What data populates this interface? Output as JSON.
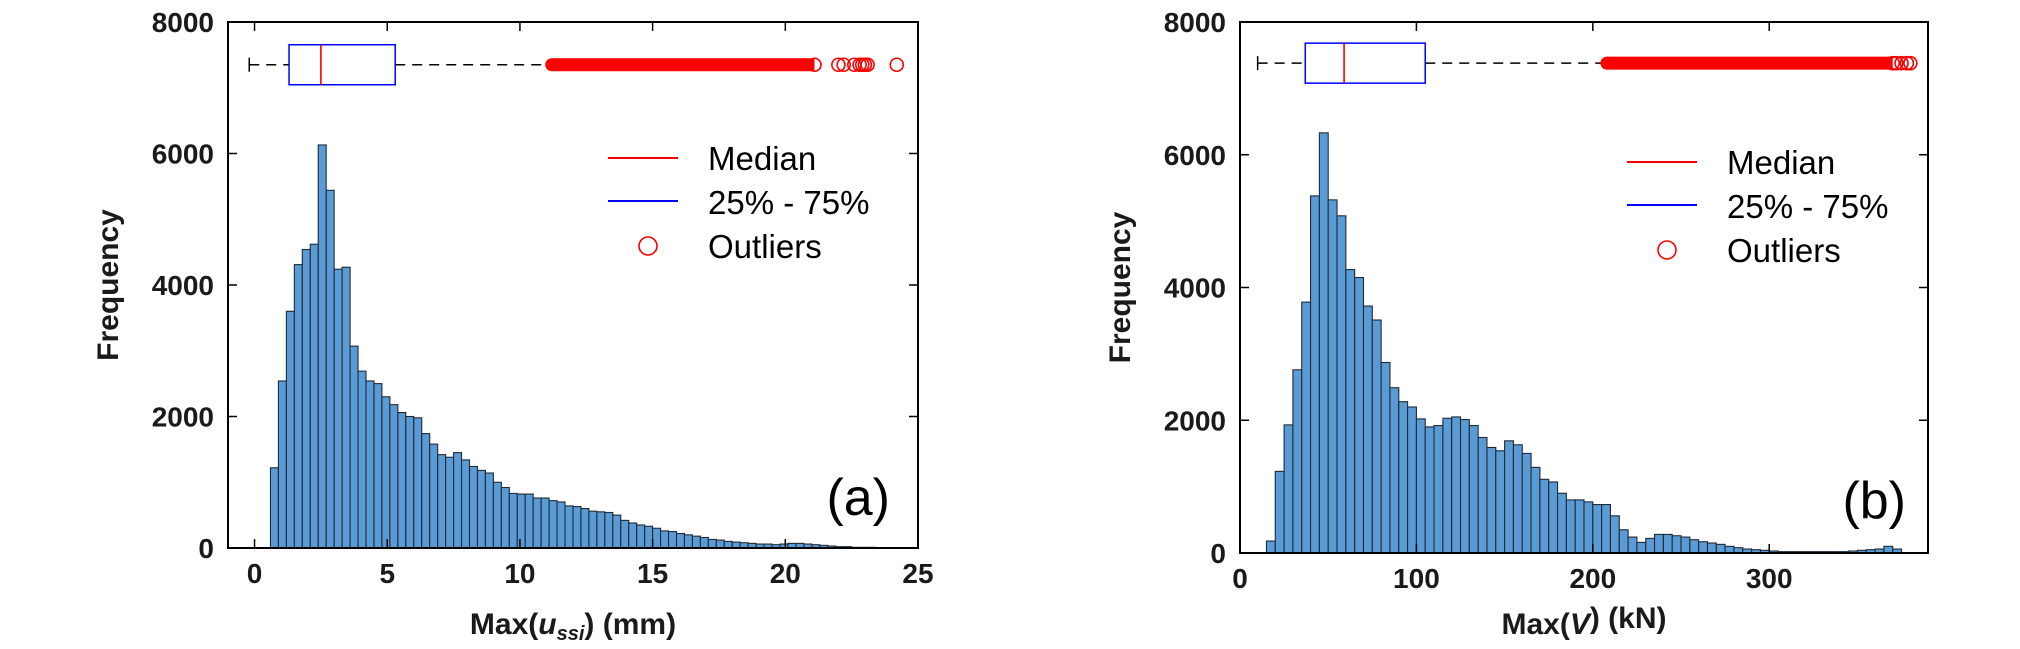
{
  "chart_data": [
    {
      "type": "bar",
      "panel_label": "(a)",
      "ylabel": "Frequency",
      "xlabel": {
        "prefix": "Max(",
        "var": "u",
        "sub": "ssi",
        "suffix": ")  (mm)"
      },
      "xlim": [
        -1,
        25
      ],
      "ylim": [
        0,
        8000
      ],
      "xticks": [
        0,
        5,
        10,
        15,
        20,
        25
      ],
      "yticks": [
        0,
        2000,
        4000,
        6000,
        8000
      ],
      "bins": {
        "start": 0.6,
        "width": 0.3
      },
      "values": [
        1220,
        2540,
        3600,
        4310,
        4540,
        4620,
        6130,
        5440,
        4240,
        4270,
        3070,
        2690,
        2540,
        2500,
        2300,
        2180,
        2060,
        2000,
        1980,
        1740,
        1580,
        1420,
        1380,
        1450,
        1340,
        1240,
        1180,
        1140,
        1000,
        920,
        830,
        820,
        820,
        760,
        760,
        720,
        700,
        640,
        630,
        600,
        560,
        550,
        540,
        500,
        420,
        380,
        350,
        330,
        300,
        260,
        250,
        220,
        200,
        180,
        160,
        130,
        120,
        100,
        90,
        80,
        70,
        60,
        60,
        50,
        60,
        70,
        70,
        60,
        50,
        40,
        30,
        20,
        20,
        10,
        10,
        10
      ],
      "boxplot": {
        "y": 7350,
        "whisker_low": -0.2,
        "q1": 1.3,
        "median": 2.5,
        "q3": 5.3,
        "whisker_high": 11.2,
        "outlier_min": 11.2,
        "outlier_dense_end": 21.1,
        "outliers_sparse": [
          22.0,
          22.2,
          22.6,
          22.8,
          22.9,
          23.0,
          23.1,
          24.2
        ]
      },
      "legend": [
        "Median",
        "25% - 75%",
        "Outliers"
      ],
      "colors": {
        "bar_fill": "#5b9bd5",
        "bar_edge": "#1f2a36",
        "median": "#ff0000",
        "box": "#0000ff",
        "outlier": "#ff0000"
      }
    },
    {
      "type": "bar",
      "panel_label": "(b)",
      "ylabel": "Frequency",
      "xlabel": {
        "prefix": "Max(",
        "var": "V",
        "sub": "",
        "suffix": ")   (kN)"
      },
      "xlim": [
        0,
        390
      ],
      "ylim": [
        0,
        8000
      ],
      "xticks": [
        0,
        100,
        200,
        300
      ],
      "yticks": [
        0,
        2000,
        4000,
        6000,
        8000
      ],
      "bins": {
        "start": 15,
        "width": 5
      },
      "values": [
        180,
        1230,
        1930,
        2760,
        3780,
        5380,
        6330,
        5320,
        5080,
        4270,
        4150,
        3720,
        3510,
        2870,
        2490,
        2280,
        2200,
        2020,
        1900,
        1920,
        2030,
        2050,
        2010,
        1920,
        1740,
        1590,
        1540,
        1690,
        1630,
        1500,
        1290,
        1110,
        1070,
        900,
        800,
        800,
        770,
        730,
        730,
        560,
        350,
        240,
        160,
        220,
        280,
        280,
        260,
        240,
        200,
        170,
        150,
        130,
        100,
        80,
        60,
        50,
        40,
        30,
        20,
        20,
        20,
        20,
        20,
        20,
        20,
        20,
        30,
        40,
        50,
        60,
        100,
        60
      ],
      "boxplot": {
        "y": 7380,
        "whisker_low": 10,
        "q1": 37,
        "median": 59,
        "q3": 105,
        "whisker_high": 208,
        "outlier_min": 208,
        "outlier_dense_end": 370,
        "outliers_sparse": [
          372,
          375,
          378,
          380
        ]
      },
      "legend": [
        "Median",
        "25% - 75%",
        "Outliers"
      ],
      "colors": {
        "bar_fill": "#5b9bd5",
        "bar_edge": "#1f2a36",
        "median": "#ff0000",
        "box": "#0000ff",
        "outlier": "#ff0000"
      }
    }
  ]
}
